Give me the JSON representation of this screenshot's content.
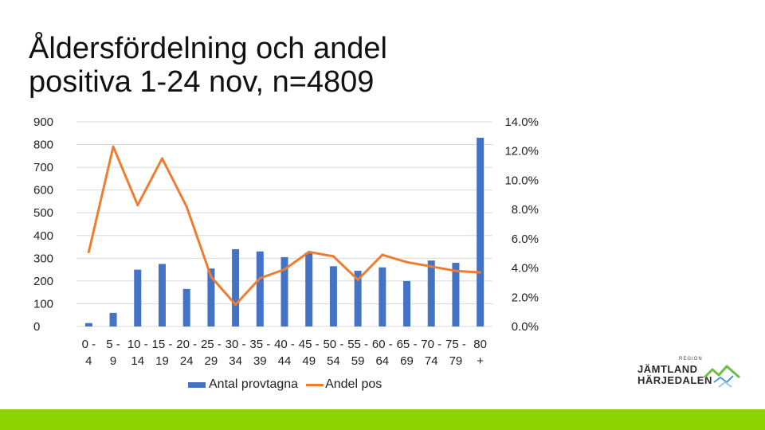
{
  "title": {
    "line1": "Åldersfördelning och andel",
    "line2": "positiva 1-24 nov, n=4809"
  },
  "colors": {
    "bar": "#4472C4",
    "line": "#ED7D31",
    "footer": "#8CD100",
    "grid": "#D9D9D9"
  },
  "legend": {
    "bar_label": "Antal provtagna",
    "line_label": "Andel pos"
  },
  "logo": {
    "small": "REGION",
    "line1": "JÄMTLAND",
    "line2": "HÄRJEDALEN"
  },
  "chart_data": {
    "type": "bar+line",
    "categories": [
      [
        "0 -",
        "4"
      ],
      [
        "5 -",
        "9"
      ],
      [
        "10 -",
        "14"
      ],
      [
        "15 -",
        "19"
      ],
      [
        "20 -",
        "24"
      ],
      [
        "25 -",
        "29"
      ],
      [
        "30 -",
        "34"
      ],
      [
        "35 -",
        "39"
      ],
      [
        "40 -",
        "44"
      ],
      [
        "45 -",
        "49"
      ],
      [
        "50 -",
        "54"
      ],
      [
        "55 -",
        "59"
      ],
      [
        "60 -",
        "64"
      ],
      [
        "65 -",
        "69"
      ],
      [
        "70 -",
        "74"
      ],
      [
        "75 -",
        "79"
      ],
      [
        "80",
        "+"
      ]
    ],
    "series": [
      {
        "name": "Antal provtagna",
        "axis": "left",
        "kind": "bar",
        "values": [
          15,
          60,
          250,
          275,
          165,
          255,
          340,
          330,
          305,
          325,
          265,
          245,
          260,
          200,
          290,
          280,
          830
        ]
      },
      {
        "name": "Andel pos",
        "axis": "right",
        "kind": "line",
        "values": [
          5.1,
          12.3,
          8.3,
          11.5,
          8.2,
          3.4,
          1.5,
          3.3,
          3.9,
          5.1,
          4.8,
          3.2,
          4.9,
          4.4,
          4.1,
          3.8,
          3.7
        ]
      }
    ],
    "y_left": {
      "min": 0,
      "max": 900,
      "step": 100,
      "ticks": [
        "0",
        "100",
        "200",
        "300",
        "400",
        "500",
        "600",
        "700",
        "800",
        "900"
      ]
    },
    "y_right": {
      "min": 0,
      "max": 14,
      "step": 2,
      "ticks": [
        "0.0%",
        "2.0%",
        "4.0%",
        "6.0%",
        "8.0%",
        "10.0%",
        "12.0%",
        "14.0%"
      ]
    },
    "grid": true,
    "legend_position": "bottom"
  }
}
